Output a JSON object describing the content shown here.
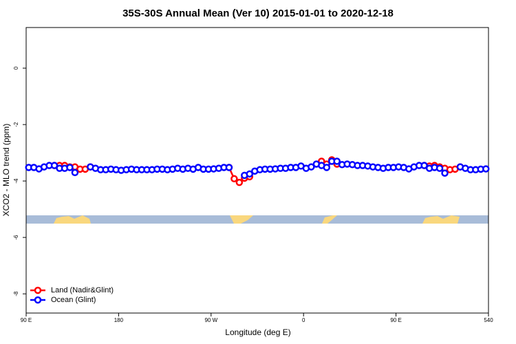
{
  "chart_data": {
    "type": "line",
    "title": "35S-30S Annual Mean (Ver 10)   2015-01-01 to 2020-12-18",
    "x_label": "Longitude (deg E)",
    "y_label": "XCO2 - MLO trend (ppm)",
    "x": [
      92.5,
      97.5,
      102.5,
      107.5,
      112.5,
      117.5,
      122.5,
      127.5,
      132.5,
      137.5,
      142.5,
      147.5,
      152.5,
      157.5,
      162.5,
      167.5,
      172.5,
      177.5,
      182.5,
      187.5,
      192.5,
      197.5,
      202.5,
      207.5,
      212.5,
      217.5,
      222.5,
      227.5,
      232.5,
      237.5,
      242.5,
      247.5,
      252.5,
      257.5,
      262.5,
      267.5,
      272.5,
      277.5,
      282.5,
      287.5,
      292.5,
      297.5,
      302.5,
      307.5,
      312.5,
      317.5,
      322.5,
      327.5,
      332.5,
      337.5,
      342.5,
      347.5,
      352.5,
      357.5,
      362.5,
      367.5,
      372.5,
      377.5,
      382.5,
      387.5,
      392.5,
      397.5,
      402.5,
      407.5,
      412.5,
      417.5,
      422.5,
      427.5,
      432.5,
      437.5,
      442.5,
      447.5,
      452.5,
      457.5,
      462.5,
      467.5,
      472.5,
      477.5,
      482.5,
      487.5,
      492.5,
      497.5,
      502.5,
      507.5,
      512.5,
      517.5,
      522.5,
      527.5,
      532.5,
      537.5
    ],
    "series": [
      {
        "name": "Land (Nadir&Glint)",
        "color": "#ff0000",
        "values": [
          null,
          null,
          null,
          null,
          null,
          -3.45,
          -3.45,
          -3.45,
          -3.5,
          -3.5,
          -3.58,
          -3.58,
          -3.5,
          null,
          null,
          null,
          null,
          null,
          null,
          null,
          null,
          null,
          null,
          null,
          null,
          null,
          null,
          null,
          null,
          null,
          null,
          null,
          null,
          null,
          null,
          null,
          null,
          null,
          null,
          -3.52,
          -3.92,
          -4.05,
          -3.9,
          -3.85,
          null,
          null,
          null,
          null,
          null,
          null,
          null,
          null,
          null,
          null,
          null,
          null,
          null,
          -3.3,
          -3.4,
          -3.25,
          -3.4,
          null,
          null,
          null,
          null,
          null,
          null,
          null,
          null,
          null,
          null,
          null,
          null,
          null,
          null,
          null,
          null,
          -3.45,
          -3.47,
          -3.45,
          -3.5,
          -3.55,
          -3.6,
          -3.58,
          -3.5,
          null,
          null,
          null,
          null,
          null
        ]
      },
      {
        "name": "Ocean (Glint)",
        "color": "#0000ff",
        "values": [
          -3.52,
          -3.52,
          -3.57,
          -3.5,
          -3.45,
          -3.45,
          -3.55,
          -3.55,
          -3.52,
          -3.7,
          null,
          null,
          -3.5,
          -3.55,
          -3.6,
          -3.6,
          -3.58,
          -3.6,
          -3.62,
          -3.6,
          -3.58,
          -3.6,
          -3.6,
          -3.6,
          -3.6,
          -3.58,
          -3.58,
          -3.6,
          -3.58,
          -3.55,
          -3.58,
          -3.55,
          -3.58,
          -3.52,
          -3.58,
          -3.58,
          -3.57,
          -3.55,
          -3.52,
          -3.52,
          null,
          null,
          -3.8,
          -3.75,
          -3.65,
          -3.6,
          -3.58,
          -3.58,
          -3.57,
          -3.55,
          -3.55,
          -3.52,
          -3.52,
          -3.47,
          -3.55,
          -3.5,
          -3.4,
          -3.45,
          -3.52,
          -3.3,
          -3.3,
          -3.42,
          -3.4,
          -3.42,
          -3.45,
          -3.45,
          -3.47,
          -3.5,
          -3.52,
          -3.55,
          -3.52,
          -3.52,
          -3.5,
          -3.52,
          -3.57,
          -3.5,
          -3.45,
          -3.45,
          -3.55,
          -3.52,
          -3.55,
          -3.72,
          null,
          null,
          -3.5,
          -3.55,
          -3.6,
          -3.6,
          -3.58,
          -3.57
        ]
      }
    ],
    "xlim": [
      90,
      540
    ],
    "xticks": [
      {
        "value": 90,
        "label": "90 E"
      },
      180,
      {
        "value": 270,
        "label": "90 W"
      },
      {
        "value": 360,
        "label": "0"
      },
      {
        "value": 450,
        "label": "90 E"
      },
      540
    ],
    "ylim": [
      -8.68,
      1.44
    ],
    "yticks": [
      0,
      -2,
      -4,
      -6,
      -8
    ],
    "legend": "bottom-left"
  }
}
